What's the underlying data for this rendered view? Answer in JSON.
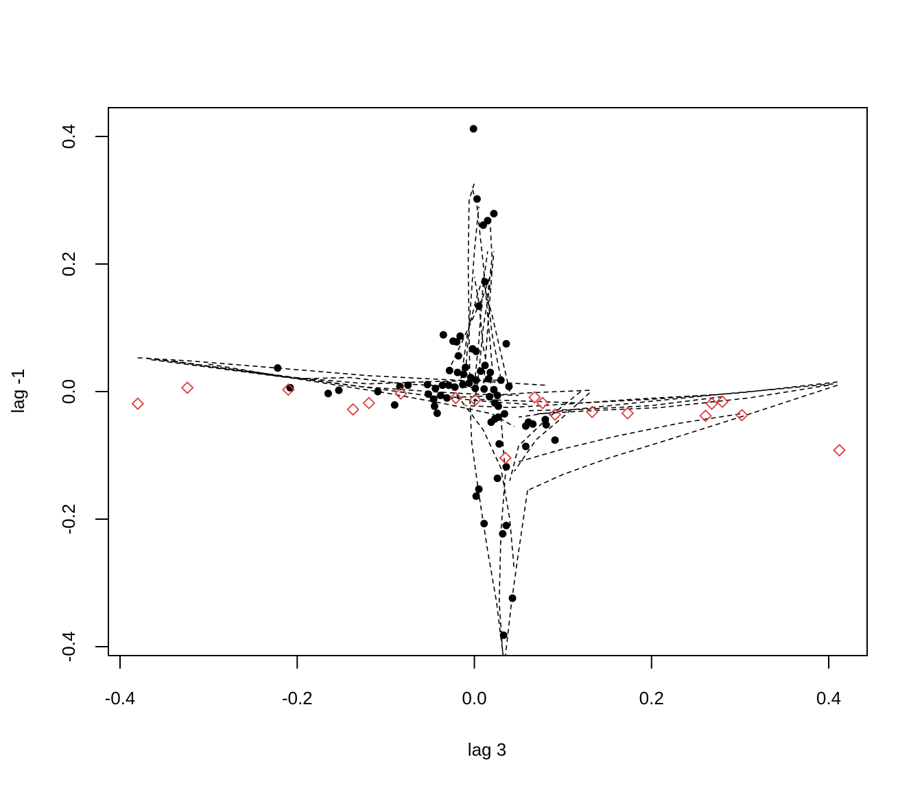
{
  "chart_data": {
    "type": "scatter",
    "title": "",
    "xlabel": "lag 3",
    "ylabel": "lag -1",
    "xlim": [
      -0.4,
      0.42
    ],
    "ylim": [
      -0.415,
      0.445
    ],
    "x_ticks": [
      -0.4,
      -0.2,
      0.0,
      0.2,
      0.4
    ],
    "x_tick_labels": [
      "-0.4",
      "-0.2",
      "0.0",
      "0.2",
      "0.4"
    ],
    "y_ticks": [
      -0.4,
      -0.2,
      0.0,
      0.2,
      0.4
    ],
    "y_tick_labels": [
      "-0.4",
      "-0.2",
      "0.0",
      "0.2",
      "0.4"
    ],
    "grid": false,
    "legend": "none",
    "colors": {
      "points": "#000000",
      "diamonds": "#df3c3c",
      "lines": "#000000"
    },
    "series": [
      {
        "marker": "filled-circle",
        "points": [
          [
            -0.001,
            0.412
          ],
          [
            0.003,
            0.302
          ],
          [
            0.022,
            0.279
          ],
          [
            0.015,
            0.268
          ],
          [
            0.01,
            0.261
          ],
          [
            0.012,
            0.172
          ],
          [
            0.005,
            0.134
          ],
          [
            -0.035,
            0.089
          ],
          [
            -0.016,
            0.087
          ],
          [
            0.036,
            0.075
          ],
          [
            -0.024,
            0.079
          ],
          [
            -0.02,
            0.078
          ],
          [
            -0.002,
            0.067
          ],
          [
            0.002,
            0.063
          ],
          [
            -0.018,
            0.056
          ],
          [
            -0.028,
            0.033
          ],
          [
            -0.01,
            0.038
          ],
          [
            0.012,
            0.041
          ],
          [
            0.018,
            0.03
          ],
          [
            -0.019,
            0.03
          ],
          [
            -0.012,
            0.027
          ],
          [
            -0.004,
            0.022
          ],
          [
            0.002,
            0.018
          ],
          [
            0.007,
            0.032
          ],
          [
            0.016,
            0.02
          ],
          [
            0.03,
            0.018
          ],
          [
            -0.222,
            0.037
          ],
          [
            -0.208,
            0.006
          ],
          [
            -0.153,
            0.002
          ],
          [
            -0.109,
            0.0
          ],
          [
            -0.084,
            0.008
          ],
          [
            -0.075,
            0.01
          ],
          [
            -0.053,
            0.011
          ],
          [
            -0.044,
            0.005
          ],
          [
            -0.036,
            0.01
          ],
          [
            -0.029,
            0.01
          ],
          [
            -0.022,
            0.007
          ],
          [
            -0.013,
            0.011
          ],
          [
            -0.006,
            0.013
          ],
          [
            0.001,
            0.005
          ],
          [
            0.011,
            0.004
          ],
          [
            0.022,
            0.003
          ],
          [
            0.039,
            0.008
          ],
          [
            -0.165,
            -0.003
          ],
          [
            -0.052,
            -0.004
          ],
          [
            -0.046,
            -0.012
          ],
          [
            -0.038,
            -0.006
          ],
          [
            -0.031,
            -0.01
          ],
          [
            0.017,
            -0.008
          ],
          [
            0.026,
            -0.006
          ],
          [
            -0.09,
            -0.021
          ],
          [
            -0.045,
            -0.023
          ],
          [
            -0.042,
            -0.034
          ],
          [
            0.023,
            -0.018
          ],
          [
            0.027,
            -0.023
          ],
          [
            0.034,
            -0.035
          ],
          [
            0.023,
            -0.043
          ],
          [
            0.027,
            -0.04
          ],
          [
            0.019,
            -0.048
          ],
          [
            0.061,
            -0.048
          ],
          [
            0.08,
            -0.044
          ],
          [
            0.066,
            -0.051
          ],
          [
            0.058,
            -0.054
          ],
          [
            0.081,
            -0.052
          ],
          [
            0.028,
            -0.082
          ],
          [
            0.058,
            -0.086
          ],
          [
            0.091,
            -0.076
          ],
          [
            0.036,
            -0.118
          ],
          [
            0.026,
            -0.136
          ],
          [
            0.005,
            -0.153
          ],
          [
            0.002,
            -0.164
          ],
          [
            0.011,
            -0.207
          ],
          [
            0.036,
            -0.21
          ],
          [
            0.032,
            -0.223
          ],
          [
            0.043,
            -0.324
          ],
          [
            0.033,
            -0.382
          ]
        ]
      },
      {
        "marker": "open-diamond",
        "points": [
          [
            -0.38,
            -0.019
          ],
          [
            -0.324,
            0.006
          ],
          [
            -0.21,
            0.003
          ],
          [
            -0.137,
            -0.028
          ],
          [
            -0.119,
            -0.018
          ],
          [
            -0.083,
            -0.003
          ],
          [
            -0.021,
            -0.01
          ],
          [
            0.001,
            -0.013
          ],
          [
            0.035,
            -0.104
          ],
          [
            0.068,
            -0.009
          ],
          [
            0.077,
            -0.018
          ],
          [
            0.091,
            -0.036
          ],
          [
            0.133,
            -0.032
          ],
          [
            0.173,
            -0.034
          ],
          [
            0.261,
            -0.038
          ],
          [
            0.268,
            -0.019
          ],
          [
            0.28,
            -0.016
          ],
          [
            0.302,
            -0.037
          ],
          [
            0.412,
            -0.092
          ]
        ]
      },
      {
        "marker": "dashed-line",
        "paths": [
          [
            [
              -0.38,
              0.053
            ],
            [
              -0.32,
              0.048
            ],
            [
              -0.25,
              0.04
            ],
            [
              -0.18,
              0.032
            ],
            [
              -0.12,
              0.025
            ],
            [
              -0.05,
              0.02
            ],
            [
              0.02,
              0.015
            ],
            [
              0.08,
              0.01
            ]
          ],
          [
            [
              -0.37,
              0.052
            ],
            [
              -0.25,
              0.031
            ],
            [
              -0.15,
              0.012
            ],
            [
              -0.06,
              -0.005
            ],
            [
              0.01,
              -0.015
            ],
            [
              0.06,
              -0.02
            ]
          ],
          [
            [
              -0.365,
              0.05
            ],
            [
              -0.2,
              0.02
            ],
            [
              -0.1,
              -0.002
            ],
            [
              -0.03,
              -0.02
            ],
            [
              0.02,
              -0.035
            ],
            [
              0.045,
              -0.055
            ]
          ],
          [
            [
              -0.36,
              0.051
            ],
            [
              -0.23,
              0.026
            ],
            [
              -0.13,
              0.008
            ],
            [
              -0.05,
              0.0
            ],
            [
              0.0,
              -0.004
            ],
            [
              0.05,
              -0.006
            ]
          ],
          [
            [
              -0.34,
              0.048
            ],
            [
              -0.22,
              0.024
            ],
            [
              -0.12,
              0.012
            ],
            [
              -0.04,
              0.016
            ],
            [
              0.03,
              0.018
            ]
          ],
          [
            [
              -0.3,
              0.043
            ],
            [
              -0.2,
              0.02
            ],
            [
              -0.14,
              0.022
            ],
            [
              -0.08,
              0.012
            ],
            [
              0.0,
              0.006
            ]
          ],
          [
            [
              0.41,
              0.015
            ],
            [
              0.3,
              -0.002
            ],
            [
              0.2,
              -0.012
            ],
            [
              0.12,
              -0.018
            ],
            [
              0.06,
              -0.015
            ],
            [
              0.0,
              -0.012
            ]
          ],
          [
            [
              0.405,
              0.012
            ],
            [
              0.28,
              -0.004
            ],
            [
              0.18,
              -0.018
            ],
            [
              0.1,
              -0.03
            ],
            [
              0.05,
              -0.04
            ]
          ],
          [
            [
              0.4,
              0.01
            ],
            [
              0.31,
              -0.01
            ],
            [
              0.21,
              -0.025
            ],
            [
              0.13,
              -0.03
            ],
            [
              0.07,
              -0.035
            ]
          ],
          [
            [
              0.27,
              -0.005
            ],
            [
              0.18,
              -0.012
            ],
            [
              0.1,
              -0.02
            ],
            [
              0.04,
              -0.025
            ],
            [
              -0.01,
              -0.022
            ]
          ],
          [
            [
              0.13,
              0.002
            ],
            [
              0.06,
              -0.002
            ],
            [
              0.0,
              -0.008
            ],
            [
              -0.05,
              -0.01
            ]
          ],
          [
            [
              0.28,
              -0.008
            ],
            [
              0.2,
              -0.022
            ],
            [
              0.12,
              -0.028
            ],
            [
              0.06,
              -0.03
            ]
          ],
          [
            [
              0.3,
              -0.035
            ],
            [
              0.23,
              -0.05
            ],
            [
              0.16,
              -0.07
            ],
            [
              0.1,
              -0.09
            ],
            [
              0.05,
              -0.11
            ]
          ],
          [
            [
              0.41,
              0.01
            ],
            [
              0.3,
              -0.04
            ],
            [
              0.22,
              -0.075
            ],
            [
              0.15,
              -0.105
            ],
            [
              0.1,
              -0.13
            ],
            [
              0.06,
              -0.155
            ]
          ],
          [
            [
              0.13,
              -0.002
            ],
            [
              0.1,
              -0.04
            ],
            [
              0.07,
              -0.075
            ],
            [
              0.045,
              -0.125
            ]
          ],
          [
            [
              0.12,
              0.0
            ],
            [
              0.08,
              -0.045
            ],
            [
              0.05,
              -0.085
            ],
            [
              0.04,
              -0.14
            ]
          ],
          [
            [
              -0.02,
              -0.005
            ],
            [
              0.01,
              -0.06
            ],
            [
              0.03,
              -0.12
            ],
            [
              0.04,
              -0.2
            ],
            [
              0.045,
              -0.28
            ]
          ],
          [
            [
              0.06,
              -0.155
            ],
            [
              0.05,
              -0.25
            ],
            [
              0.042,
              -0.33
            ],
            [
              0.035,
              -0.415
            ]
          ],
          [
            [
              -0.005,
              -0.012
            ],
            [
              -0.003,
              -0.08
            ],
            [
              0.005,
              -0.16
            ],
            [
              0.015,
              -0.25
            ],
            [
              0.025,
              -0.33
            ],
            [
              0.033,
              -0.42
            ]
          ],
          [
            [
              0.03,
              -0.04
            ],
            [
              0.035,
              -0.13
            ],
            [
              0.03,
              -0.22
            ],
            [
              0.028,
              -0.33
            ],
            [
              0.032,
              -0.41
            ]
          ],
          [
            [
              -0.005,
              0.01
            ],
            [
              -0.006,
              0.1
            ],
            [
              -0.007,
              0.2
            ],
            [
              -0.006,
              0.3
            ],
            [
              0.0,
              0.327
            ]
          ],
          [
            [
              0.02,
              0.04
            ],
            [
              0.015,
              0.12
            ],
            [
              0.01,
              0.2
            ],
            [
              0.003,
              0.29
            ],
            [
              -0.003,
              0.322
            ]
          ],
          [
            [
              -0.01,
              0.03
            ],
            [
              -0.005,
              0.12
            ],
            [
              0.0,
              0.22
            ],
            [
              0.005,
              0.29
            ]
          ],
          [
            [
              0.01,
              0.0
            ],
            [
              0.015,
              0.1
            ],
            [
              0.02,
              0.19
            ],
            [
              0.022,
              0.22
            ]
          ],
          [
            [
              0.0,
              0.01
            ],
            [
              0.005,
              0.08
            ],
            [
              0.01,
              0.17
            ],
            [
              0.015,
              0.22
            ]
          ],
          [
            [
              -0.015,
              0.02
            ],
            [
              -0.008,
              0.09
            ],
            [
              0.003,
              0.15
            ],
            [
              0.01,
              0.18
            ]
          ],
          [
            [
              0.02,
              0.0
            ],
            [
              0.01,
              0.07
            ],
            [
              0.005,
              0.14
            ],
            [
              0.0,
              0.18
            ]
          ],
          [
            [
              0.03,
              0.02
            ],
            [
              0.02,
              0.09
            ],
            [
              0.015,
              0.15
            ],
            [
              0.02,
              0.21
            ],
            [
              0.018,
              0.26
            ]
          ],
          [
            [
              0.04,
              0.0
            ],
            [
              0.03,
              0.06
            ],
            [
              0.02,
              0.12
            ],
            [
              0.01,
              0.17
            ]
          ],
          [
            [
              -0.03,
              0.03
            ],
            [
              -0.01,
              0.09
            ],
            [
              0.01,
              0.15
            ],
            [
              0.02,
              0.19
            ]
          ],
          [
            [
              0.0,
              -0.02
            ],
            [
              0.005,
              0.03
            ],
            [
              0.01,
              0.1
            ],
            [
              0.018,
              0.17
            ]
          ]
        ]
      }
    ]
  }
}
